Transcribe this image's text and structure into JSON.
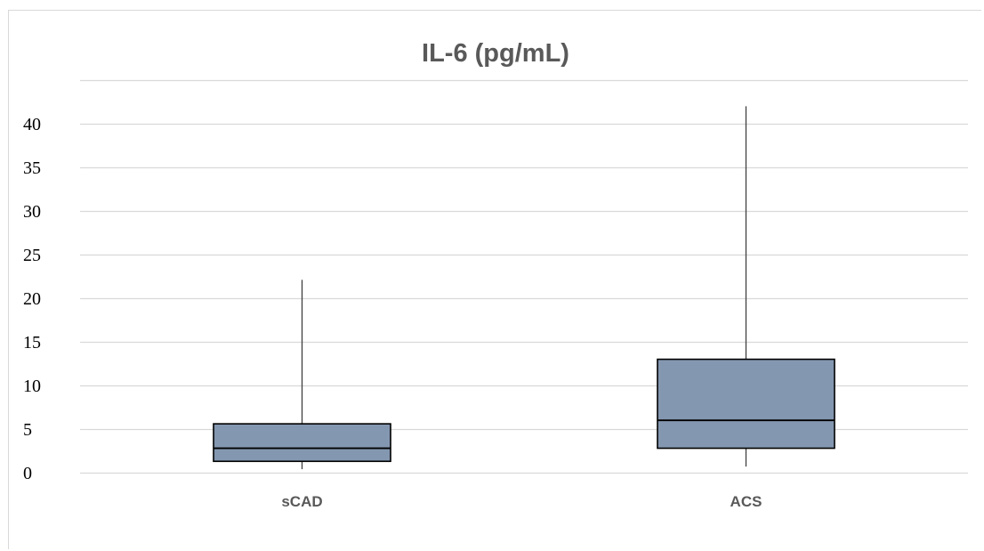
{
  "chart_data": {
    "type": "box",
    "title": "IL-6 (pg/mL)",
    "xlabel": "",
    "ylabel": "",
    "ylim": [
      0,
      45
    ],
    "yticks": [
      0,
      5,
      10,
      15,
      20,
      25,
      30,
      35,
      40
    ],
    "grid": true,
    "categories": [
      "sCAD",
      "ACS"
    ],
    "boxes": [
      {
        "category": "sCAD",
        "min": 0.4,
        "q1": 1.3,
        "median": 2.8,
        "q3": 5.6,
        "max": 22.1
      },
      {
        "category": "ACS",
        "min": 0.7,
        "q1": 2.8,
        "median": 6.0,
        "q3": 13.0,
        "max": 42.0
      }
    ],
    "box_color": "#8497b0",
    "box_edge_color": "#000000",
    "grid_color": "#d9d9d9"
  }
}
